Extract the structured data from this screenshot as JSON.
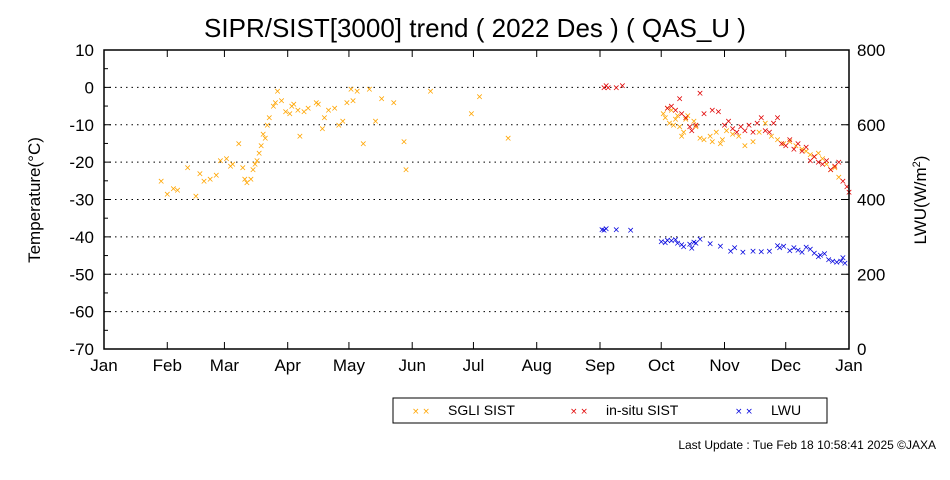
{
  "chart_data": {
    "type": "scatter",
    "title": "SIPR/SIST[3000] trend ( 2022 Des ) ( QAS_U )",
    "ylabel": "Temperature(°C)",
    "y2label_main": "LWU(W/m",
    "y2label_sup": "2",
    "y2label_end": ")",
    "ylim": [
      -70,
      10
    ],
    "y2lim": [
      0,
      800
    ],
    "xlim": [
      0,
      365
    ],
    "yticks": [
      10,
      0,
      -10,
      -20,
      -30,
      -40,
      -50,
      -60,
      -70
    ],
    "yticklabels": [
      "10",
      "0",
      "-10",
      "-20",
      "-30",
      "-40",
      "-50",
      "-60",
      "-70"
    ],
    "y2ticks": [
      800,
      600,
      400,
      200,
      0
    ],
    "y2ticklabels": [
      "800",
      "600",
      "400",
      "200",
      "0"
    ],
    "month_ticks": [
      0,
      31,
      59,
      90,
      120,
      151,
      181,
      212,
      243,
      273,
      304,
      334,
      365
    ],
    "month_labels": [
      "Jan",
      "Feb",
      "Mar",
      "Apr",
      "May",
      "Jun",
      "Jul",
      "Aug",
      "Sep",
      "Oct",
      "Nov",
      "Dec",
      "Jan"
    ],
    "grid": "horizontal-dotted",
    "legend_position": "bottom",
    "series": [
      {
        "name": "SGLI SIST",
        "color": "#ffa500",
        "axis": "left",
        "x": [
          28,
          31,
          34,
          36,
          41,
          45,
          47,
          49,
          52,
          55,
          57,
          60,
          62,
          63,
          66,
          68,
          69,
          70,
          72,
          73,
          74,
          75,
          76,
          77,
          78,
          79,
          80,
          81,
          83,
          84,
          85,
          87,
          89,
          91,
          92,
          93,
          95,
          96,
          98,
          100,
          104,
          105,
          107,
          108,
          110,
          113,
          115,
          117,
          119,
          121,
          122,
          124,
          127,
          130,
          133,
          136,
          142,
          147,
          148,
          160,
          180,
          184,
          198,
          274,
          275,
          276,
          277,
          278,
          279,
          280,
          281,
          282,
          283,
          284,
          285,
          286,
          289,
          290,
          292,
          294,
          297,
          298,
          300,
          302,
          303,
          305,
          308,
          311,
          314,
          318,
          321,
          324,
          327,
          330,
          333,
          336,
          339,
          342,
          344,
          346,
          348,
          350,
          352,
          354,
          356,
          358,
          360
        ],
        "y": [
          -25,
          -28.5,
          -27,
          -27.5,
          -21.5,
          -29,
          -23,
          -25,
          -24.5,
          -23.5,
          -19.5,
          -19,
          -21,
          -20.5,
          -15,
          -21.5,
          -24.5,
          -25.5,
          -24.5,
          -22,
          -20.5,
          -19.5,
          -17.5,
          -15.5,
          -12.5,
          -13.5,
          -10,
          -8,
          -5,
          -4,
          -1,
          -3.5,
          -6.5,
          -7,
          -5,
          -4.5,
          -6,
          -13,
          -6.5,
          -5.5,
          -4,
          -4.5,
          -11,
          -8,
          -6,
          -5.5,
          -10,
          -9,
          -4,
          -0.5,
          -3.5,
          -1,
          -15,
          -0.5,
          -9,
          -3,
          -4,
          -14.5,
          -22,
          -1,
          -7,
          -2.5,
          -13.5,
          -7,
          -8,
          -5.5,
          -9.5,
          -6,
          -10,
          -8.5,
          -7.5,
          -10.5,
          -13,
          -12,
          -8.5,
          -7.5,
          -9,
          -10.5,
          -13.5,
          -14,
          -13,
          -14.5,
          -12,
          -15,
          -14,
          -11.5,
          -12.5,
          -13,
          -15.5,
          -14.5,
          -12,
          -9.5,
          -13,
          -14,
          -15,
          -14.5,
          -15.5,
          -16.5,
          -17,
          -18,
          -18.5,
          -17.5,
          -19,
          -20.5,
          -22,
          -21.5,
          -24
        ]
      },
      {
        "name": "in-situ SIST",
        "color": "#e00000",
        "axis": "left",
        "x": [
          245,
          246,
          247,
          251,
          254,
          276,
          278,
          280,
          282,
          283,
          285,
          287,
          288,
          290,
          292,
          294,
          298,
          301,
          304,
          306,
          308,
          310,
          312,
          314,
          316,
          318,
          320,
          322,
          324,
          326,
          328,
          330,
          332,
          334,
          336,
          338,
          340,
          342,
          344,
          346,
          348,
          350,
          352,
          354,
          356,
          358,
          360,
          362,
          364,
          365
        ],
        "y": [
          0,
          0.5,
          0,
          0,
          0.5,
          -5.5,
          -5,
          -6,
          -3,
          -7,
          -8,
          -10.5,
          -11.5,
          -10,
          -1.5,
          -7,
          -6,
          -6.5,
          -10,
          -9,
          -11,
          -12,
          -10.5,
          -11.5,
          -10,
          -12,
          -9.5,
          -8,
          -11.5,
          -12,
          -9.5,
          -8,
          -15,
          -15.5,
          -14,
          -16.5,
          -15,
          -17,
          -16,
          -19.5,
          -18.5,
          -20,
          -20.5,
          -19.5,
          -22,
          -21,
          -20,
          -25,
          -26.5,
          -28
        ]
      },
      {
        "name": "LWU",
        "color": "#0000dd",
        "axis": "right",
        "x": [
          244,
          245,
          246,
          251,
          258,
          273,
          275,
          276,
          278,
          280,
          281,
          283,
          284,
          287,
          288,
          289,
          290,
          292,
          297,
          302,
          307,
          309,
          313,
          318,
          322,
          326,
          330,
          331,
          333,
          336,
          338,
          340,
          342,
          344,
          346,
          348,
          350,
          351,
          353,
          355,
          357,
          359,
          361,
          362,
          363
        ],
        "y": [
          320,
          318,
          322,
          320,
          318,
          288,
          285,
          292,
          290,
          293,
          284,
          280,
          274,
          281,
          270,
          286,
          284,
          294,
          282,
          275,
          262,
          271,
          260,
          262,
          261,
          262,
          277,
          272,
          276,
          263,
          272,
          265,
          260,
          273,
          268,
          257,
          248,
          252,
          256,
          240,
          236,
          233,
          235,
          245,
          230
        ]
      }
    ]
  },
  "footer": {
    "last_update": "Last Update : Tue Feb 18 10:58:41 2025  ©JAXA"
  }
}
